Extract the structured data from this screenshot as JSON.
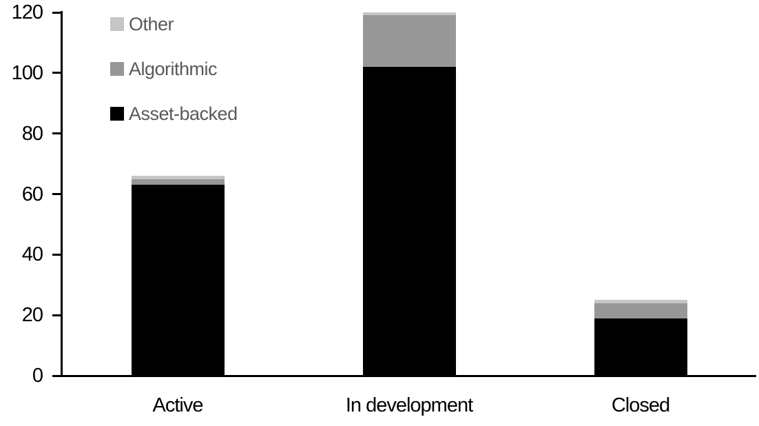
{
  "chart_data": {
    "type": "bar",
    "stacked": true,
    "title": "",
    "xlabel": "",
    "ylabel": "",
    "categories": [
      "Active",
      "In development",
      "Closed"
    ],
    "series": [
      {
        "name": "Asset-backed",
        "color": "#000000",
        "values": [
          63,
          102,
          19
        ]
      },
      {
        "name": "Algorithmic",
        "color": "#979797",
        "values": [
          2,
          17,
          5
        ]
      },
      {
        "name": "Other",
        "color": "#c6c6c6",
        "values": [
          1,
          1,
          1
        ]
      }
    ],
    "totals": [
      66,
      120,
      25
    ],
    "ylim": [
      0,
      120
    ],
    "yticks": [
      "0",
      "20",
      "40",
      "60",
      "80",
      "100",
      "120"
    ],
    "grid": false,
    "axis_color": "#000000",
    "legend": {
      "position": "top-left",
      "text_color": "#595959",
      "entries": [
        {
          "label": "Other",
          "color": "#c6c6c6"
        },
        {
          "label": "Algorithmic",
          "color": "#979797"
        },
        {
          "label": "Asset-backed",
          "color": "#000000"
        }
      ]
    }
  }
}
